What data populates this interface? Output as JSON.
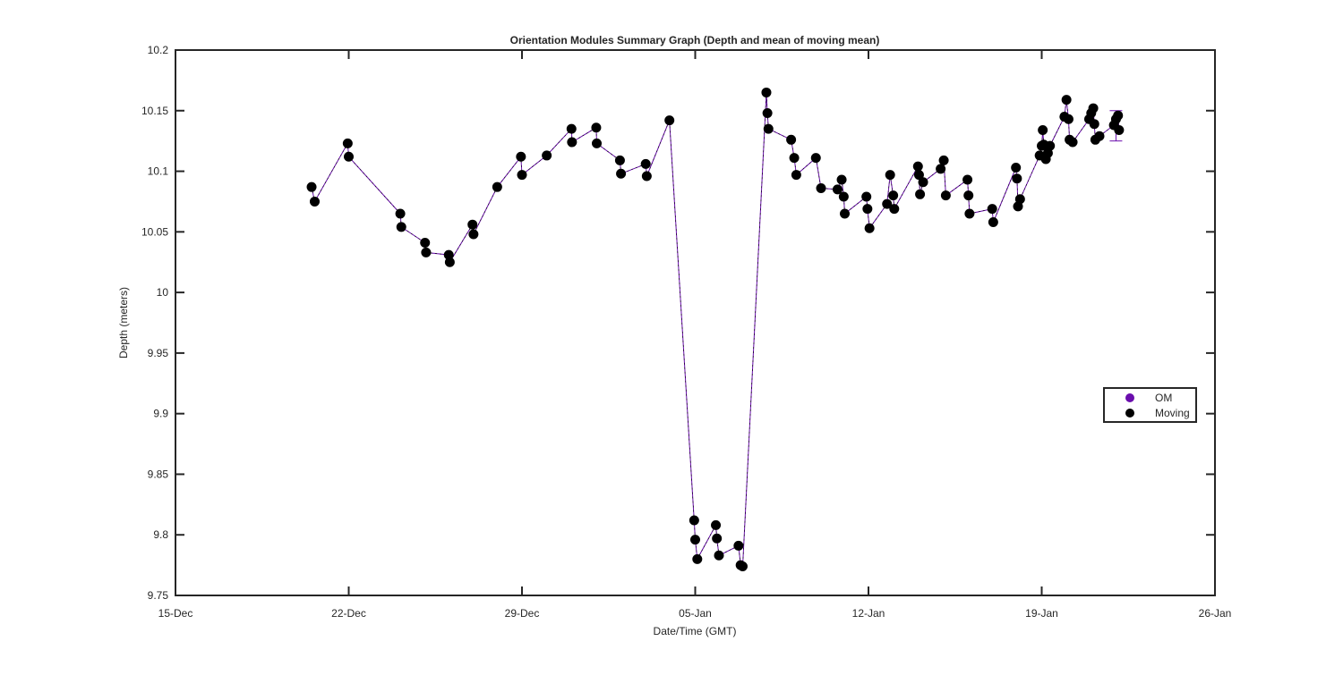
{
  "chart_data": {
    "type": "line",
    "title": "Orientation Modules Summary Graph (Depth and mean of moving mean)",
    "xlabel": "Date/Time (GMT)",
    "ylabel": "Depth (meters)",
    "x_axis_type": "date",
    "year_context": "Dec–Jan (year not shown)",
    "xlim": [
      "15-Dec",
      "26-Jan"
    ],
    "ylim": [
      9.75,
      10.2
    ],
    "x_ticks": [
      "15-Dec",
      "22-Dec",
      "29-Dec",
      "05-Jan",
      "12-Jan",
      "19-Jan",
      "26-Jan"
    ],
    "y_ticks": [
      "9.75",
      "9.8",
      "9.85",
      "9.9",
      "9.95",
      "10",
      "10.05",
      "10.1",
      "10.15",
      "10.2"
    ],
    "grid": false,
    "legend_placement": "right",
    "series": [
      {
        "name": "OM",
        "color": "#6a0dad",
        "marker": "circle"
      },
      {
        "name": "Moving",
        "color": "#000000",
        "marker": "circle"
      }
    ],
    "points": [
      [
        "20-Dec 12:00",
        10.087
      ],
      [
        "20-Dec 15:00",
        10.075
      ],
      [
        "21-Dec 23:00",
        10.123
      ],
      [
        "22-Dec 00:00",
        10.112
      ],
      [
        "24-Dec 02:00",
        10.065
      ],
      [
        "24-Dec 03:00",
        10.054
      ],
      [
        "25-Dec 02:00",
        10.041
      ],
      [
        "25-Dec 03:00",
        10.033
      ],
      [
        "26-Dec 01:00",
        10.031
      ],
      [
        "26-Dec 02:00",
        10.025
      ],
      [
        "27-Dec 00:00",
        10.056
      ],
      [
        "27-Dec 01:00",
        10.048
      ],
      [
        "28-Dec 00:00",
        10.087
      ],
      [
        "28-Dec 23:00",
        10.112
      ],
      [
        "29-Dec 00:00",
        10.097
      ],
      [
        "30-Dec 00:00",
        10.113
      ],
      [
        "31-Dec 00:00",
        10.135
      ],
      [
        "31-Dec 00:30",
        10.124
      ],
      [
        "01-Jan 00:00",
        10.136
      ],
      [
        "01-Jan 00:30",
        10.123
      ],
      [
        "01-Jan 23:00",
        10.109
      ],
      [
        "02-Jan 00:00",
        10.098
      ],
      [
        "03-Jan 00:00",
        10.106
      ],
      [
        "03-Jan 01:00",
        10.096
      ],
      [
        "03-Jan 23:00",
        10.142
      ],
      [
        "04-Jan 23:00",
        9.812
      ],
      [
        "05-Jan 00:00",
        9.796
      ],
      [
        "05-Jan 02:00",
        9.78
      ],
      [
        "05-Jan 20:00",
        9.808
      ],
      [
        "05-Jan 21:00",
        9.797
      ],
      [
        "05-Jan 23:00",
        9.783
      ],
      [
        "06-Jan 18:00",
        9.791
      ],
      [
        "06-Jan 20:00",
        9.775
      ],
      [
        "06-Jan 22:00",
        9.774
      ],
      [
        "07-Jan 21:00",
        10.165
      ],
      [
        "07-Jan 22:00",
        10.148
      ],
      [
        "07-Jan 23:00",
        10.135
      ],
      [
        "08-Jan 21:00",
        10.126
      ],
      [
        "09-Jan 00:00",
        10.111
      ],
      [
        "09-Jan 02:00",
        10.097
      ],
      [
        "09-Jan 21:00",
        10.111
      ],
      [
        "10-Jan 02:00",
        10.086
      ],
      [
        "10-Jan 18:00",
        10.085
      ],
      [
        "10-Jan 22:00",
        10.093
      ],
      [
        "11-Jan 00:00",
        10.079
      ],
      [
        "11-Jan 01:00",
        10.065
      ],
      [
        "11-Jan 22:00",
        10.079
      ],
      [
        "11-Jan 23:00",
        10.069
      ],
      [
        "12-Jan 01:00",
        10.053
      ],
      [
        "12-Jan 18:00",
        10.073
      ],
      [
        "12-Jan 21:00",
        10.097
      ],
      [
        "13-Jan 00:00",
        10.08
      ],
      [
        "13-Jan 01:00",
        10.069
      ],
      [
        "14-Jan 00:00",
        10.104
      ],
      [
        "14-Jan 01:00",
        10.097
      ],
      [
        "14-Jan 02:00",
        10.081
      ],
      [
        "14-Jan 05:00",
        10.091
      ],
      [
        "14-Jan 22:00",
        10.102
      ],
      [
        "15-Jan 01:00",
        10.109
      ],
      [
        "15-Jan 03:00",
        10.08
      ],
      [
        "16-Jan 00:00",
        10.093
      ],
      [
        "16-Jan 01:00",
        10.08
      ],
      [
        "16-Jan 02:00",
        10.065
      ],
      [
        "17-Jan 00:00",
        10.069
      ],
      [
        "17-Jan 01:00",
        10.058
      ],
      [
        "17-Jan 23:00",
        10.103
      ],
      [
        "18-Jan 00:00",
        10.094
      ],
      [
        "18-Jan 01:00",
        10.071
      ],
      [
        "18-Jan 03:00",
        10.077
      ],
      [
        "18-Jan 22:00",
        10.113
      ],
      [
        "19-Jan 00:00",
        10.121
      ],
      [
        "19-Jan 01:00",
        10.134
      ],
      [
        "19-Jan 02:00",
        10.122
      ],
      [
        "19-Jan 04:00",
        10.11
      ],
      [
        "19-Jan 06:00",
        10.115
      ],
      [
        "19-Jan 08:00",
        10.121
      ],
      [
        "19-Jan 22:00",
        10.145
      ],
      [
        "20-Jan 00:00",
        10.159
      ],
      [
        "20-Jan 02:00",
        10.143
      ],
      [
        "20-Jan 03:00",
        10.126
      ],
      [
        "20-Jan 06:00",
        10.124
      ],
      [
        "20-Jan 22:00",
        10.143
      ],
      [
        "21-Jan 00:00",
        10.148
      ],
      [
        "21-Jan 02:00",
        10.152
      ],
      [
        "21-Jan 03:00",
        10.139
      ],
      [
        "21-Jan 04:00",
        10.126
      ],
      [
        "21-Jan 08:00",
        10.129
      ],
      [
        "21-Jan 22:00",
        10.138
      ],
      [
        "22-Jan 00:00",
        10.143
      ],
      [
        "22-Jan 02:00",
        10.146
      ],
      [
        "22-Jan 03:00",
        10.134
      ]
    ],
    "error_bar": {
      "x": "22-Jan 00:00",
      "low": 10.125,
      "high": 10.15
    }
  }
}
